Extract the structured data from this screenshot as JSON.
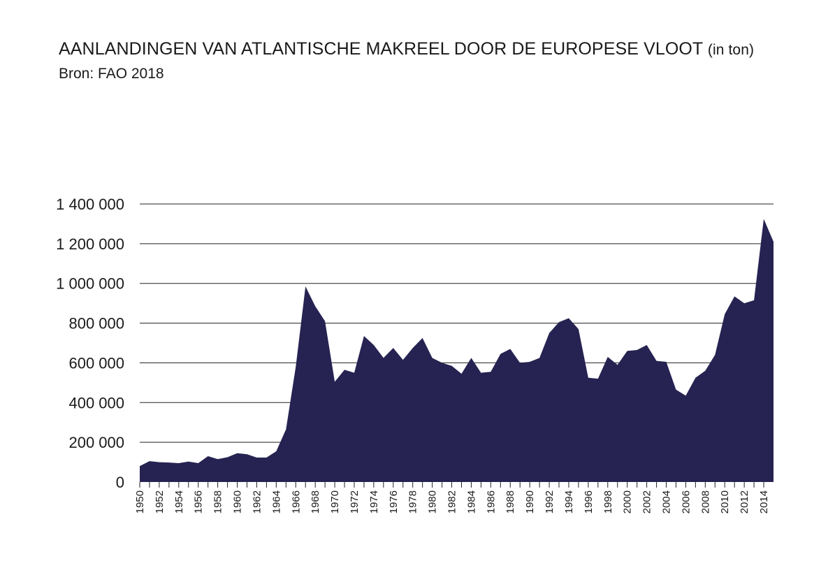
{
  "title": "AANLANDINGEN VAN ATLANTISCHE MAKREEL DOOR DE EUROPESE VLOOT",
  "title_unit": "(in ton)",
  "subtitle": "Bron: FAO 2018",
  "colors": {
    "area": "#262352",
    "grid": "#222222"
  },
  "chart_data": {
    "type": "area",
    "title": "AANLANDINGEN VAN ATLANTISCHE MAKREEL DOOR DE EUROPESE VLOOT (in ton)",
    "subtitle": "Bron: FAO 2018",
    "xlabel": "",
    "ylabel": "",
    "ylim": [
      0,
      1400000
    ],
    "xlim": [
      1950,
      2015
    ],
    "grid": "horizontal",
    "yticks": [
      0,
      200000,
      400000,
      600000,
      800000,
      1000000,
      1200000,
      1400000
    ],
    "ytick_labels": [
      "0",
      "200 000",
      "400 000",
      "600 000",
      "800 000",
      "1 000 000",
      "1 200 000",
      "1 400 000"
    ],
    "xtick_labels": [
      "1950",
      "1952",
      "1954",
      "1956",
      "1958",
      "1960",
      "1962",
      "1964",
      "1966",
      "1968",
      "1970",
      "1972",
      "1974",
      "1976",
      "1978",
      "1980",
      "1982",
      "1984",
      "1986",
      "1988",
      "1990",
      "1992",
      "1994",
      "1996",
      "1998",
      "2000",
      "2002",
      "2004",
      "2006",
      "2008",
      "2010",
      "2012",
      "2014"
    ],
    "x": [
      1950,
      1951,
      1952,
      1953,
      1954,
      1955,
      1956,
      1957,
      1958,
      1959,
      1960,
      1961,
      1962,
      1963,
      1964,
      1965,
      1966,
      1967,
      1968,
      1969,
      1970,
      1971,
      1972,
      1973,
      1974,
      1975,
      1976,
      1977,
      1978,
      1979,
      1980,
      1981,
      1982,
      1983,
      1984,
      1985,
      1986,
      1987,
      1988,
      1989,
      1990,
      1991,
      1992,
      1993,
      1994,
      1995,
      1996,
      1997,
      1998,
      1999,
      2000,
      2001,
      2002,
      2003,
      2004,
      2005,
      2006,
      2007,
      2008,
      2009,
      2010,
      2011,
      2012,
      2013,
      2014,
      2015
    ],
    "values": [
      80000,
      105000,
      100000,
      98000,
      95000,
      103000,
      95000,
      130000,
      115000,
      125000,
      145000,
      140000,
      123000,
      123000,
      155000,
      265000,
      580000,
      985000,
      885000,
      810000,
      505000,
      565000,
      550000,
      735000,
      690000,
      625000,
      675000,
      615000,
      675000,
      725000,
      625000,
      600000,
      585000,
      545000,
      625000,
      550000,
      555000,
      645000,
      670000,
      600000,
      605000,
      625000,
      750000,
      805000,
      825000,
      770000,
      525000,
      520000,
      630000,
      590000,
      660000,
      665000,
      690000,
      610000,
      605000,
      465000,
      435000,
      525000,
      560000,
      640000,
      845000,
      935000,
      900000,
      915000,
      1325000,
      1210000
    ]
  }
}
